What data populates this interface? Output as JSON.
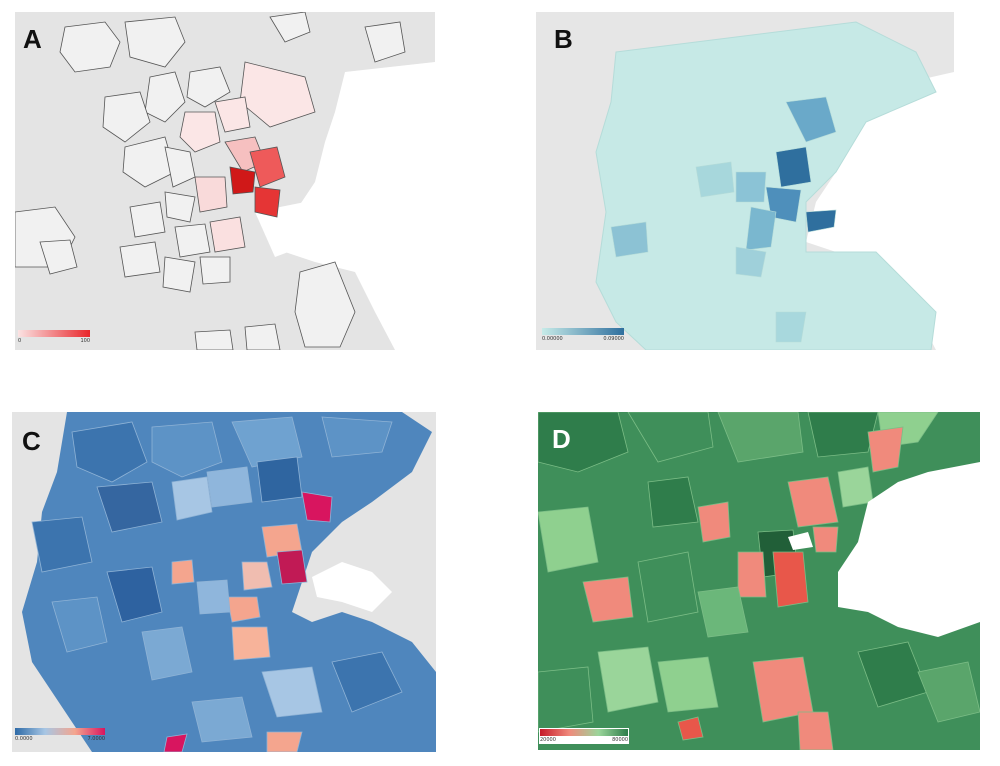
{
  "panels": [
    {
      "letter": "A",
      "letter_color": "#111111",
      "kind": "choropleth-outline",
      "low_color": "#ffffff",
      "high_color": "#e8262b",
      "legend": {
        "min": "0",
        "max": "100",
        "gradient": [
          "#fbe3e3",
          "#e8262b"
        ]
      }
    },
    {
      "letter": "B",
      "letter_color": "#111111",
      "kind": "choropleth-teal",
      "low_color": "#c7ebe8",
      "high_color": "#2f6f9e",
      "legend": {
        "min": "0.00000",
        "max": "0.09000",
        "gradient": [
          "#c7ebe8",
          "#2f6f9e"
        ]
      }
    },
    {
      "letter": "C",
      "letter_color": "#111111",
      "kind": "choropleth-diverging-blue",
      "low_color": "#3b77b3",
      "high_color": "#d8155f",
      "legend": {
        "min": "0.0000",
        "max": "7.0000",
        "gradient": [
          "#2e6aa7",
          "#a7c6e4",
          "#f4a58e",
          "#d8155f"
        ]
      }
    },
    {
      "letter": "D",
      "letter_color": "#ffffff",
      "kind": "choropleth-diverging-green",
      "low_color": "#e8574a",
      "high_color": "#2f7d4b",
      "legend": {
        "min": "20000",
        "max": "80000",
        "gradient": [
          "#c61a2a",
          "#f08a7c",
          "#9ad59a",
          "#2f7d4b"
        ]
      }
    }
  ]
}
